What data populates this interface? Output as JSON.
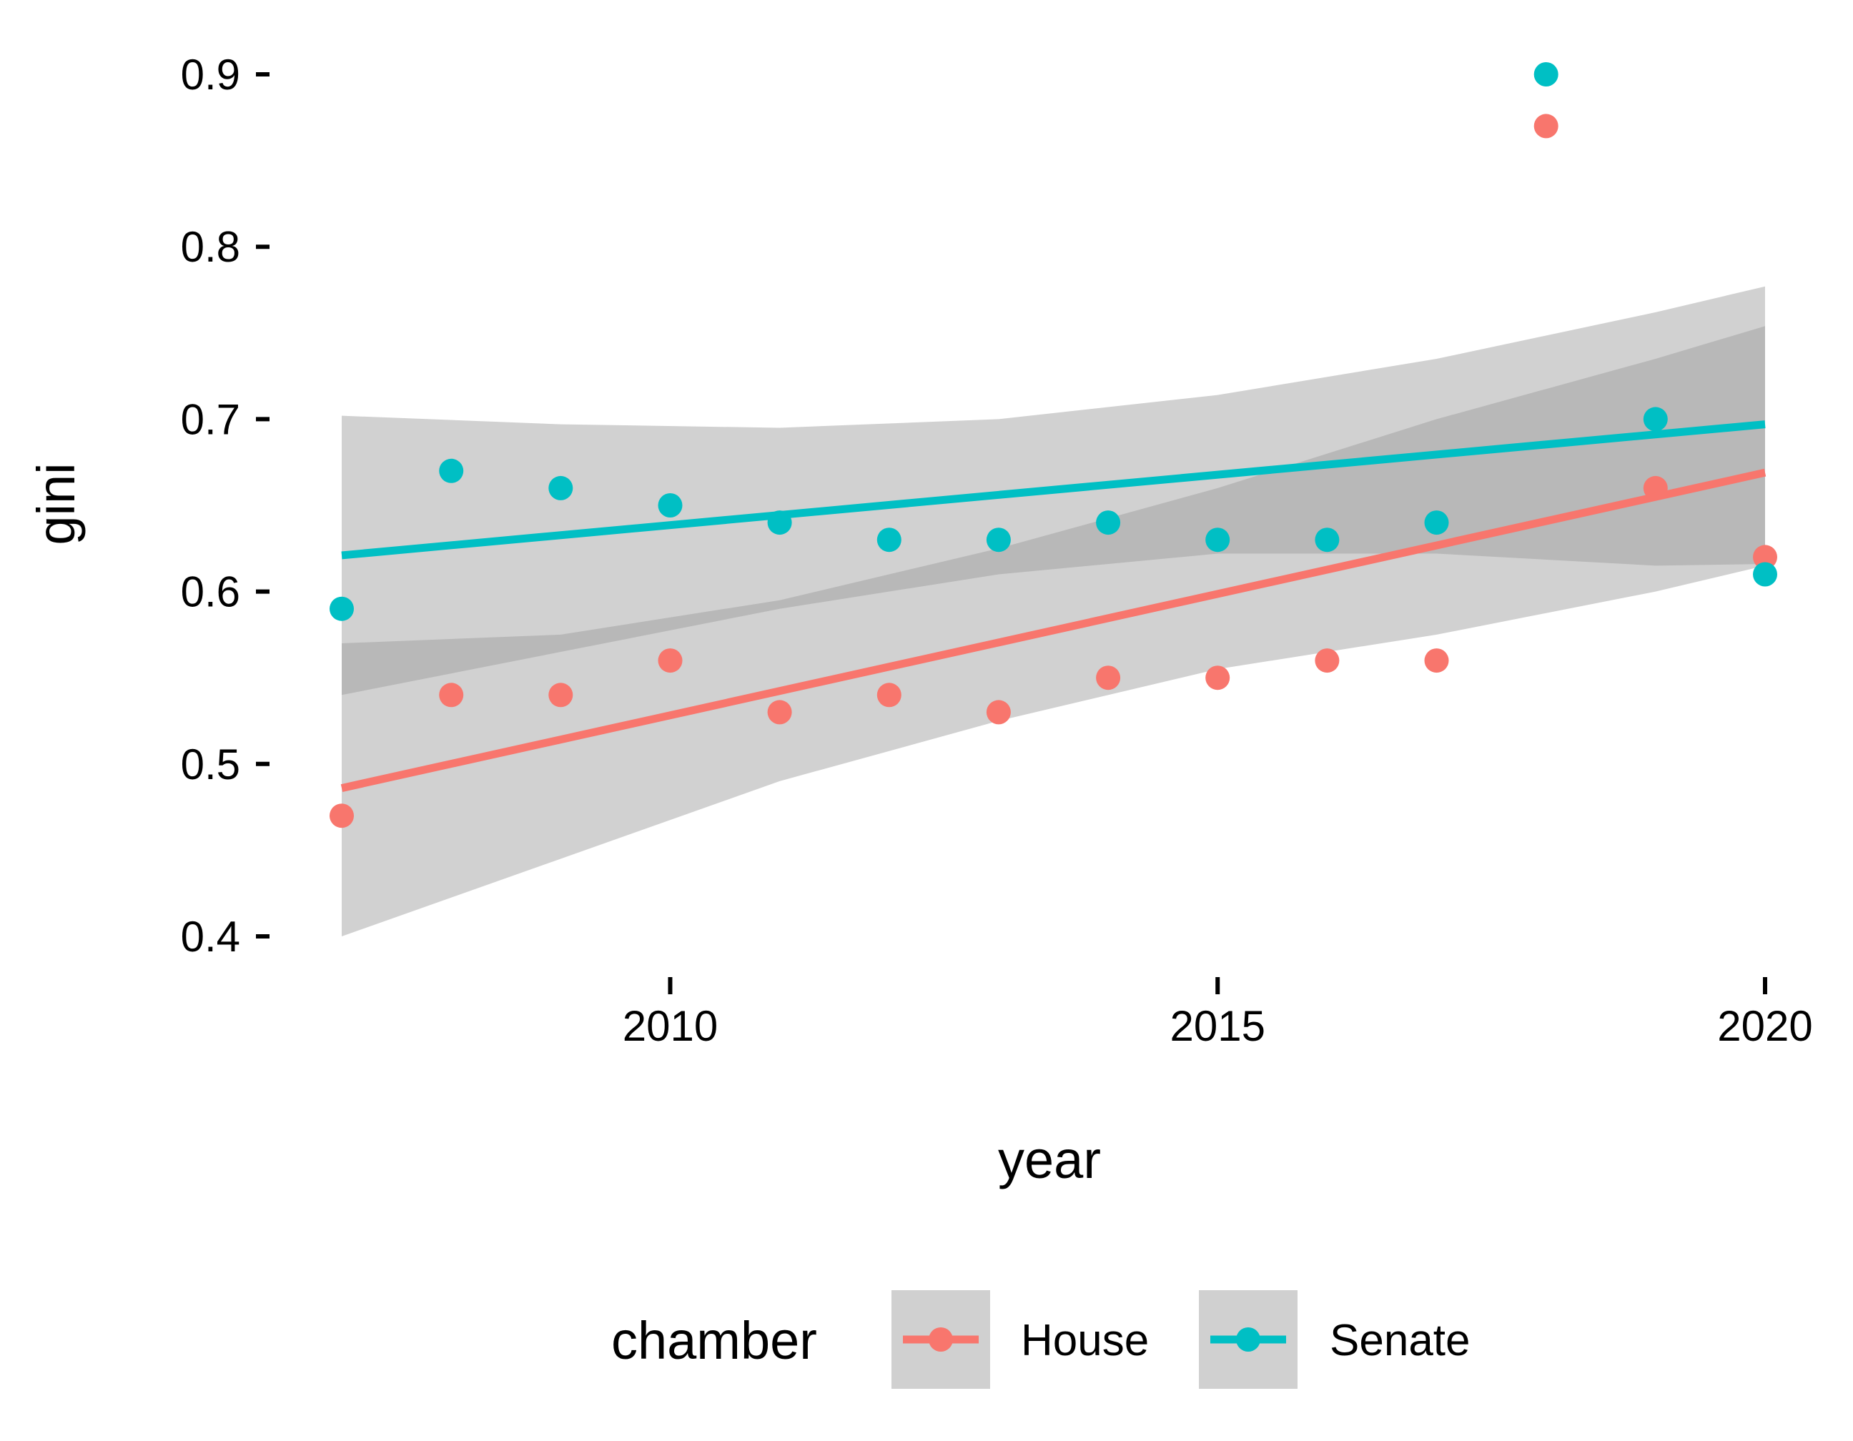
{
  "chart_data": {
    "type": "scatter",
    "title": "",
    "xlabel": "year",
    "ylabel": "gini",
    "xlim": [
      2007,
      2020
    ],
    "ylim": [
      0.4,
      0.9
    ],
    "x_ticks": [
      2010,
      2015,
      2020
    ],
    "x_tick_labels": [
      "2010",
      "2015",
      "2020"
    ],
    "y_ticks": [
      0.4,
      0.5,
      0.6,
      0.7,
      0.8,
      0.9
    ],
    "y_tick_labels": [
      "0.4",
      "0.5",
      "0.6",
      "0.7",
      "0.8",
      "0.9"
    ],
    "grid": false,
    "legend": {
      "title": "chamber",
      "position": "bottom"
    },
    "series": [
      {
        "name": "House",
        "color": "#F8766D",
        "x": [
          2007,
          2008,
          2009,
          2010,
          2011,
          2012,
          2013,
          2014,
          2015,
          2016,
          2017,
          2018,
          2019,
          2020
        ],
        "y": [
          0.47,
          0.54,
          0.54,
          0.56,
          0.53,
          0.54,
          0.53,
          0.55,
          0.55,
          0.56,
          0.56,
          0.87,
          0.66,
          0.62
        ],
        "fit": {
          "x": [
            2007,
            2020
          ],
          "y": [
            0.486,
            0.669
          ]
        },
        "band": {
          "x": [
            2007,
            2009,
            2011,
            2013,
            2015,
            2017,
            2019,
            2020
          ],
          "upper": [
            0.57,
            0.575,
            0.595,
            0.625,
            0.66,
            0.7,
            0.735,
            0.754
          ],
          "lower": [
            0.4,
            0.445,
            0.49,
            0.525,
            0.555,
            0.575,
            0.6,
            0.615
          ]
        }
      },
      {
        "name": "Senate",
        "color": "#00BFC4",
        "x": [
          2007,
          2008,
          2009,
          2010,
          2011,
          2012,
          2013,
          2014,
          2015,
          2016,
          2017,
          2018,
          2019,
          2020
        ],
        "y": [
          0.59,
          0.67,
          0.66,
          0.65,
          0.64,
          0.63,
          0.63,
          0.64,
          0.63,
          0.63,
          0.64,
          0.9,
          0.7,
          0.61
        ],
        "fit": {
          "x": [
            2007,
            2020
          ],
          "y": [
            0.621,
            0.697
          ]
        },
        "band": {
          "x": [
            2007,
            2009,
            2011,
            2013,
            2015,
            2017,
            2019,
            2020
          ],
          "upper": [
            0.702,
            0.697,
            0.695,
            0.7,
            0.714,
            0.735,
            0.762,
            0.777
          ],
          "lower": [
            0.54,
            0.565,
            0.59,
            0.61,
            0.622,
            0.622,
            0.615,
            0.616
          ]
        }
      }
    ]
  }
}
